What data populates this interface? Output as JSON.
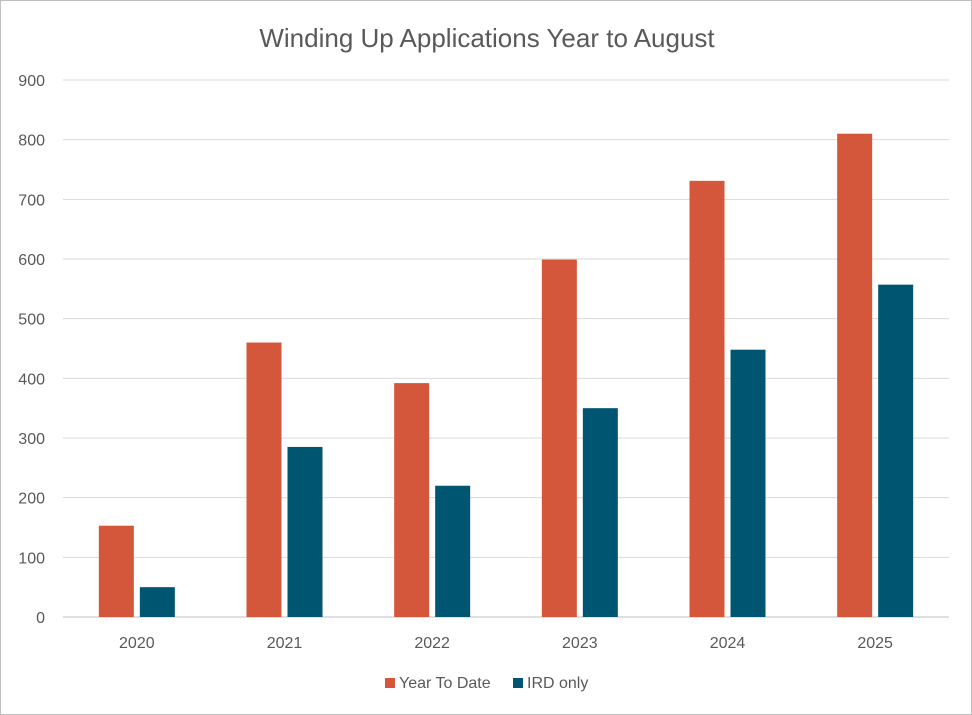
{
  "chart_data": {
    "type": "bar",
    "title": "Winding Up Applications Year to August",
    "xlabel": "",
    "ylabel": "",
    "categories": [
      "2020",
      "2021",
      "2022",
      "2023",
      "2024",
      "2025"
    ],
    "series": [
      {
        "name": "Year To Date",
        "color": "#d5573b",
        "values": [
          153,
          460,
          392,
          599,
          731,
          810
        ]
      },
      {
        "name": "IRD only",
        "color": "#005670",
        "values": [
          50,
          285,
          220,
          350,
          448,
          557
        ]
      }
    ],
    "ylim": [
      0,
      900
    ],
    "yticks": [
      0,
      100,
      200,
      300,
      400,
      500,
      600,
      700,
      800,
      900
    ],
    "grid": true,
    "legend_position": "bottom"
  }
}
